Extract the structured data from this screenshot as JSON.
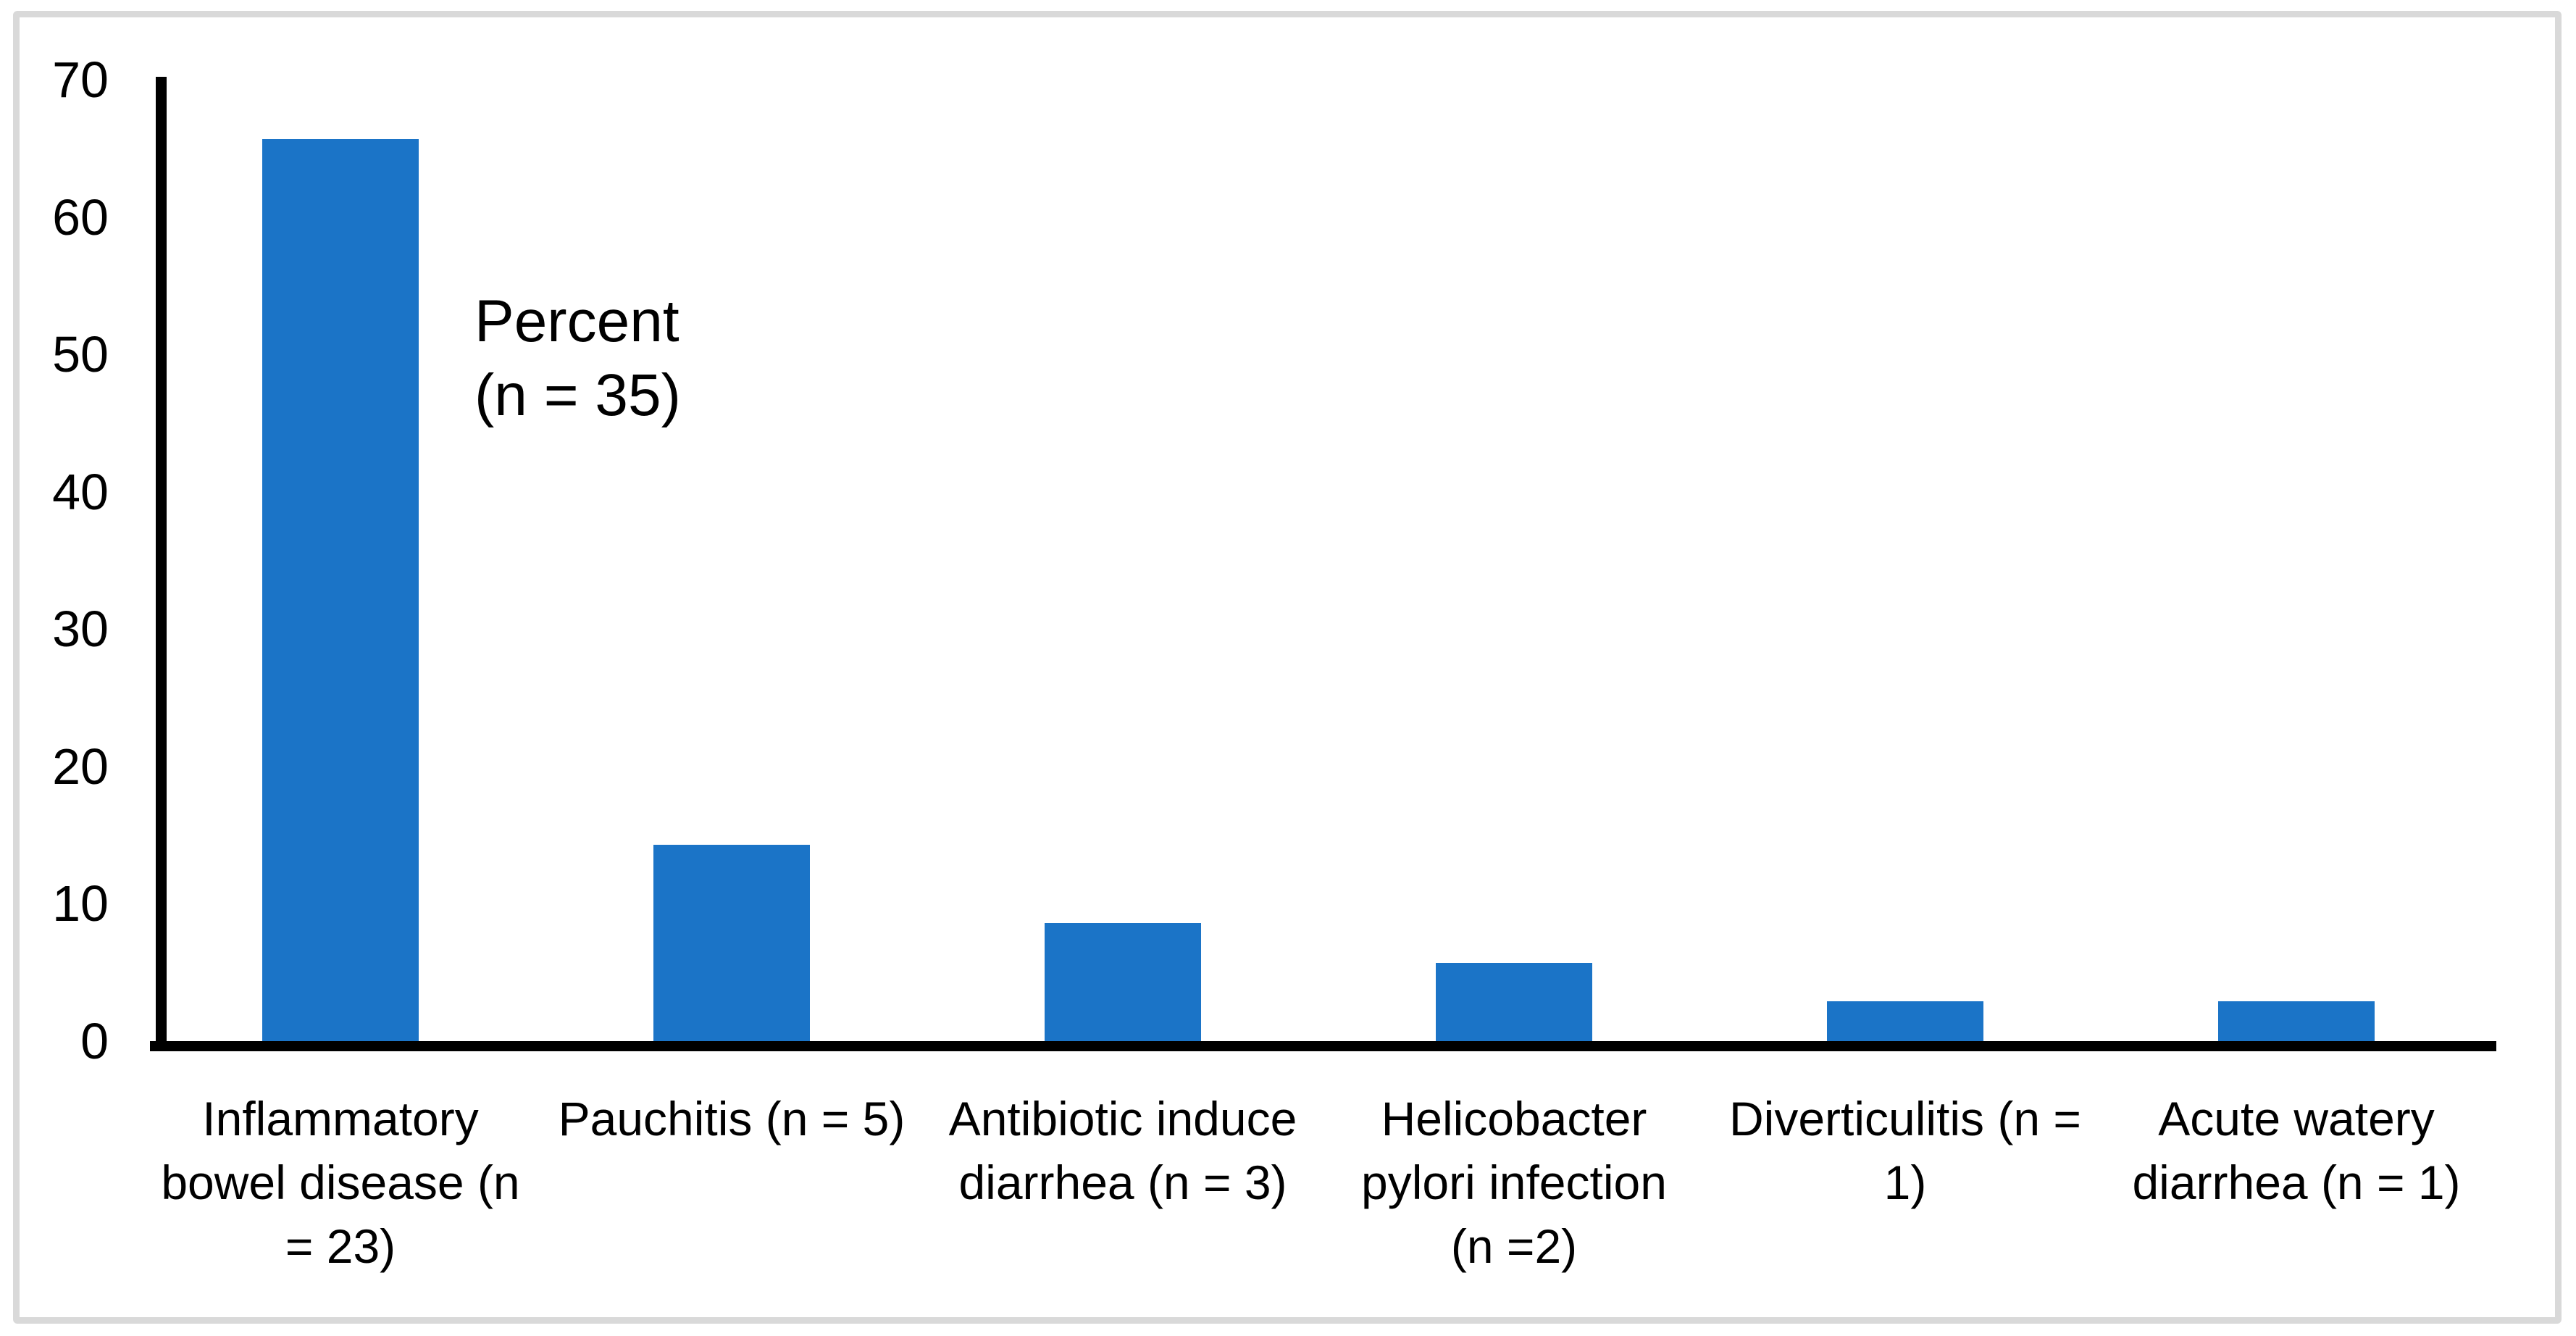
{
  "chart_data": {
    "type": "bar",
    "title": "",
    "xlabel": "",
    "ylabel": "",
    "grid": false,
    "legend_position": "none",
    "annotation": {
      "lines": [
        "Percent",
        "(n = 35)"
      ]
    },
    "y_axis": {
      "min": 0,
      "max": 70,
      "ticks": [
        0,
        10,
        20,
        30,
        40,
        50,
        60,
        70
      ],
      "tick_labels": [
        "0",
        "10",
        "20",
        "30",
        "40",
        "50",
        "60",
        "70"
      ]
    },
    "categories": [
      {
        "name": "Inflammatory bowel disease (n = 23)",
        "label_lines": [
          "Inflammatory",
          "bowel disease (n",
          "= 23)"
        ],
        "value": 65.7
      },
      {
        "name": "Pauchitis (n = 5)",
        "label_lines": [
          "Pauchitis (n = 5)"
        ],
        "value": 14.3
      },
      {
        "name": "Antibiotic induce diarrhea (n = 3)",
        "label_lines": [
          "Antibiotic induce",
          "diarrhea (n = 3)"
        ],
        "value": 8.6
      },
      {
        "name": "Helicobacter pylori infection (n =2)",
        "label_lines": [
          "Helicobacter",
          "pylori infection",
          "(n =2)"
        ],
        "value": 5.7
      },
      {
        "name": "Diverticulitis (n = 1)",
        "label_lines": [
          "Diverticulitis (n =",
          "1)"
        ],
        "value": 2.9
      },
      {
        "name": "Acute watery diarrhea (n = 1)",
        "label_lines": [
          "Acute watery",
          "diarrhea (n = 1)"
        ],
        "value": 2.9
      }
    ],
    "colors": {
      "bar_fill": "#1b74c7",
      "axis": "#000000",
      "text": "#000000",
      "frame_border": "#d9d9d9",
      "background": "#ffffff"
    }
  }
}
